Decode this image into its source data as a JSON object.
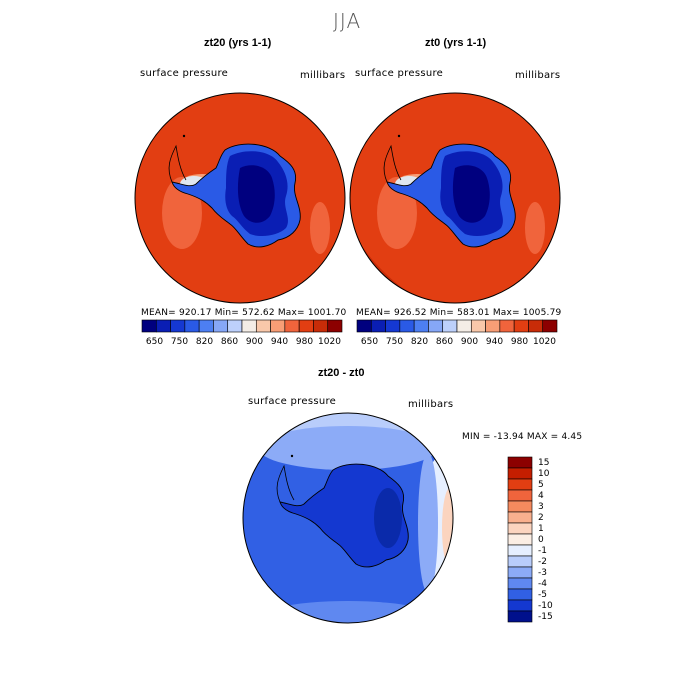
{
  "page_title": "JJA",
  "chart_data": [
    {
      "type": "heatmap",
      "title": "zt20 (yrs 1-1)",
      "variable_label": "surface pressure",
      "units_label": "millibars",
      "stats": {
        "mean": "920.17",
        "min": "572.62",
        "max": "1001.70"
      },
      "stats_text": "MEAN= 920.17   Min= 572.62   Max= 1001.70",
      "colorbar": {
        "colors": [
          "#00007f",
          "#0a1eb4",
          "#1538d2",
          "#2a5ae6",
          "#4d7ff2",
          "#86a7f7",
          "#bdd0fb",
          "#f4ede6",
          "#f9c8aa",
          "#f89e76",
          "#f0643c",
          "#e23e12",
          "#c82c08",
          "#8c0000"
        ],
        "tick_labels": [
          "650",
          "750",
          "820",
          "860",
          "900",
          "940",
          "980",
          "1020"
        ]
      }
    },
    {
      "type": "heatmap",
      "title": "zt0 (yrs 1-1)",
      "variable_label": "surface pressure",
      "units_label": "millibars",
      "stats": {
        "mean": "926.52",
        "min": "583.01",
        "max": "1005.79"
      },
      "stats_text": "MEAN= 926.52   Min= 583.01   Max= 1005.79",
      "colorbar": {
        "colors": [
          "#00007f",
          "#0a1eb4",
          "#1538d2",
          "#2a5ae6",
          "#4d7ff2",
          "#86a7f7",
          "#bdd0fb",
          "#f4ede6",
          "#f9c8aa",
          "#f89e76",
          "#f0643c",
          "#e23e12",
          "#c82c08",
          "#8c0000"
        ],
        "tick_labels": [
          "650",
          "750",
          "820",
          "860",
          "900",
          "940",
          "980",
          "1020"
        ]
      }
    },
    {
      "type": "heatmap",
      "title": "zt20 - zt0",
      "variable_label": "surface pressure",
      "units_label": "millibars",
      "stats": {
        "min": "-13.94",
        "max": "4.45"
      },
      "stats_text": "MIN = -13.94 MAX =    4.45",
      "colorbar": {
        "orientation": "vertical",
        "levels": [
          "15",
          "10",
          "5",
          "4",
          "3",
          "2",
          "1",
          "0",
          "-1",
          "-2",
          "-3",
          "-4",
          "-5",
          "-10",
          "-15"
        ],
        "colors": [
          "#8c0000",
          "#c41e00",
          "#e23e12",
          "#f0643c",
          "#f58a5e",
          "#f9b08e",
          "#fbd4bf",
          "#fbeee4",
          "#e6efff",
          "#b9cdfb",
          "#8cabf7",
          "#5f88f0",
          "#3160e4",
          "#1438d0",
          "#00108c"
        ]
      }
    }
  ]
}
